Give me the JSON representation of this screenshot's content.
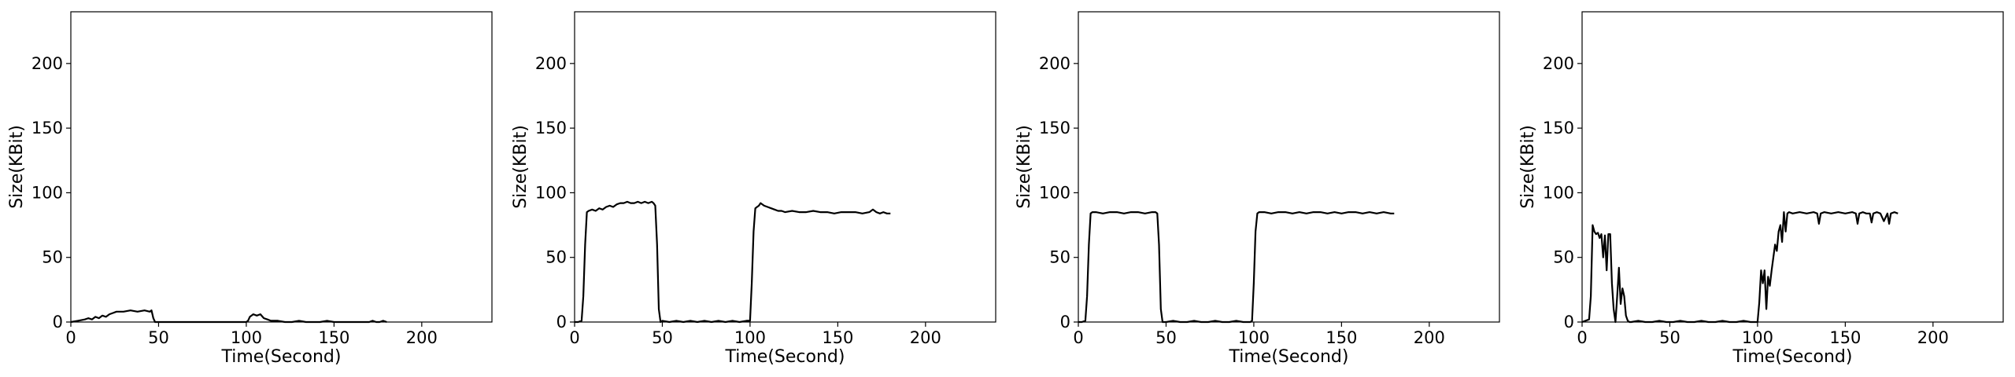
{
  "chart_data": [
    {
      "type": "line",
      "xlabel": "Time(Second)",
      "ylabel": "Size(KBit)",
      "xlim": [
        0,
        240
      ],
      "ylim": [
        0,
        240
      ],
      "xticks": [
        "0",
        "50",
        "100",
        "150",
        "200"
      ],
      "yticks": [
        "0",
        "50",
        "100",
        "150",
        "200"
      ],
      "series": [
        {
          "x": [
            0,
            4,
            8,
            10,
            12,
            14,
            16,
            18,
            20,
            22,
            24,
            26,
            30,
            34,
            38,
            42,
            45,
            46,
            47,
            48,
            49,
            52,
            56,
            60,
            64,
            68,
            72,
            76,
            80,
            84,
            88,
            92,
            96,
            99,
            100,
            101,
            102,
            104,
            106,
            108,
            110,
            112,
            114,
            118,
            122,
            126,
            130,
            134,
            138,
            142,
            146,
            150,
            154,
            158,
            162,
            166,
            170,
            172,
            174,
            176,
            178,
            180
          ],
          "y": [
            0,
            1,
            2,
            3,
            2,
            4,
            3,
            5,
            4,
            6,
            7,
            8,
            8,
            9,
            8,
            9,
            8,
            9,
            3,
            0,
            0,
            0,
            0,
            0,
            0,
            0,
            0,
            0,
            0,
            0,
            0,
            0,
            0,
            0,
            0,
            1,
            4,
            6,
            5,
            6,
            3,
            2,
            1,
            1,
            0,
            0,
            1,
            0,
            0,
            0,
            1,
            0,
            0,
            0,
            0,
            0,
            0,
            1,
            0,
            0,
            1,
            0
          ]
        }
      ]
    },
    {
      "type": "line",
      "xlabel": "Time(Second)",
      "ylabel": "Size(KBit)",
      "xlim": [
        0,
        240
      ],
      "ylim": [
        0,
        240
      ],
      "xticks": [
        "0",
        "50",
        "100",
        "150",
        "200"
      ],
      "yticks": [
        "0",
        "50",
        "100",
        "150",
        "200"
      ],
      "series": [
        {
          "x": [
            0,
            2,
            4,
            5,
            6,
            7,
            8,
            10,
            12,
            14,
            16,
            18,
            20,
            22,
            24,
            26,
            28,
            30,
            32,
            34,
            36,
            38,
            40,
            42,
            44,
            45,
            46,
            47,
            48,
            49,
            50,
            54,
            58,
            62,
            66,
            70,
            74,
            78,
            82,
            86,
            90,
            94,
            98,
            100,
            101,
            102,
            103,
            104,
            105,
            106,
            108,
            110,
            112,
            114,
            116,
            118,
            120,
            124,
            128,
            132,
            136,
            140,
            144,
            148,
            152,
            156,
            160,
            164,
            168,
            170,
            172,
            174,
            176,
            178,
            180
          ],
          "y": [
            0,
            0,
            1,
            20,
            60,
            85,
            86,
            87,
            86,
            88,
            87,
            89,
            90,
            89,
            91,
            92,
            92,
            93,
            92,
            92,
            93,
            92,
            93,
            92,
            93,
            92,
            90,
            60,
            10,
            0,
            1,
            0,
            1,
            0,
            1,
            0,
            1,
            0,
            1,
            0,
            1,
            0,
            1,
            1,
            30,
            70,
            88,
            89,
            90,
            92,
            90,
            89,
            88,
            87,
            86,
            86,
            85,
            86,
            85,
            85,
            86,
            85,
            85,
            84,
            85,
            85,
            85,
            84,
            85,
            87,
            85,
            84,
            85,
            84,
            84
          ]
        }
      ]
    },
    {
      "type": "line",
      "xlabel": "Time(Second)",
      "ylabel": "Size(KBit)",
      "xlim": [
        0,
        240
      ],
      "ylim": [
        0,
        240
      ],
      "xticks": [
        "0",
        "50",
        "100",
        "150",
        "200"
      ],
      "yticks": [
        "0",
        "50",
        "100",
        "150",
        "200"
      ],
      "series": [
        {
          "x": [
            0,
            2,
            4,
            5,
            6,
            7,
            8,
            10,
            14,
            18,
            22,
            26,
            30,
            34,
            38,
            42,
            44,
            45,
            46,
            47,
            48,
            50,
            54,
            58,
            62,
            66,
            70,
            74,
            78,
            82,
            86,
            90,
            94,
            98,
            99,
            100,
            101,
            102,
            103,
            106,
            110,
            114,
            118,
            122,
            126,
            130,
            134,
            138,
            142,
            146,
            150,
            154,
            158,
            162,
            166,
            170,
            174,
            178,
            180
          ],
          "y": [
            0,
            0,
            1,
            20,
            60,
            84,
            85,
            85,
            84,
            85,
            85,
            84,
            85,
            85,
            84,
            85,
            85,
            84,
            60,
            10,
            0,
            0,
            1,
            0,
            0,
            1,
            0,
            0,
            1,
            0,
            0,
            1,
            0,
            0,
            1,
            30,
            70,
            84,
            85,
            85,
            84,
            85,
            85,
            84,
            85,
            84,
            85,
            85,
            84,
            85,
            84,
            85,
            85,
            84,
            85,
            84,
            85,
            84,
            84
          ]
        }
      ]
    },
    {
      "type": "line",
      "xlabel": "Time(Second)",
      "ylabel": "Size(KBit)",
      "xlim": [
        0,
        240
      ],
      "ylim": [
        0,
        240
      ],
      "xticks": [
        "0",
        "50",
        "100",
        "150",
        "200"
      ],
      "yticks": [
        "0",
        "50",
        "100",
        "150",
        "200"
      ],
      "series": [
        {
          "x": [
            0,
            4,
            5,
            6,
            7,
            8,
            9,
            10,
            11,
            12,
            13,
            14,
            15,
            16,
            17,
            18,
            19,
            20,
            21,
            22,
            23,
            24,
            25,
            26,
            27,
            28,
            32,
            36,
            40,
            44,
            48,
            52,
            56,
            60,
            64,
            68,
            72,
            76,
            80,
            84,
            88,
            92,
            96,
            100,
            101,
            102,
            103,
            104,
            105,
            106,
            107,
            108,
            109,
            110,
            111,
            112,
            113,
            114,
            115,
            116,
            117,
            118,
            120,
            124,
            128,
            132,
            134,
            135,
            136,
            138,
            142,
            146,
            150,
            154,
            156,
            157,
            158,
            160,
            162,
            164,
            165,
            166,
            168,
            170,
            172,
            174,
            175,
            176,
            178,
            180
          ],
          "y": [
            0,
            2,
            20,
            75,
            70,
            68,
            69,
            65,
            68,
            50,
            67,
            40,
            68,
            68,
            30,
            10,
            0,
            20,
            42,
            14,
            26,
            20,
            5,
            1,
            0,
            0,
            1,
            0,
            0,
            1,
            0,
            0,
            1,
            0,
            0,
            1,
            0,
            0,
            1,
            0,
            0,
            1,
            0,
            0,
            15,
            40,
            30,
            40,
            10,
            35,
            28,
            40,
            50,
            60,
            55,
            70,
            75,
            62,
            85,
            70,
            84,
            85,
            84,
            85,
            84,
            85,
            84,
            76,
            84,
            85,
            84,
            85,
            84,
            85,
            84,
            76,
            84,
            85,
            84,
            84,
            77,
            84,
            85,
            84,
            78,
            84,
            76,
            84,
            85,
            84
          ]
        }
      ]
    }
  ]
}
